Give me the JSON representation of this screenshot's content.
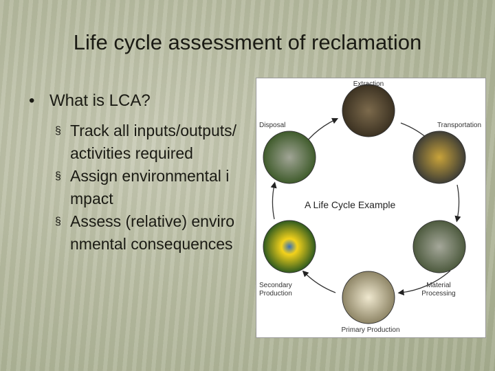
{
  "title": "Life cycle assessment of reclamation",
  "bullets": [
    {
      "text": "What is LCA?",
      "subitems": [
        "Track all inputs/outputs/activities required",
        "Assign environmental impact",
        "Assess (relative) environmental consequences"
      ]
    }
  ],
  "diagram": {
    "title": "A  Life Cycle Example",
    "stages": [
      "Extraction",
      "Transportation",
      "Material Processing",
      "Primary Production",
      "Secondary Production",
      "Disposal"
    ]
  }
}
